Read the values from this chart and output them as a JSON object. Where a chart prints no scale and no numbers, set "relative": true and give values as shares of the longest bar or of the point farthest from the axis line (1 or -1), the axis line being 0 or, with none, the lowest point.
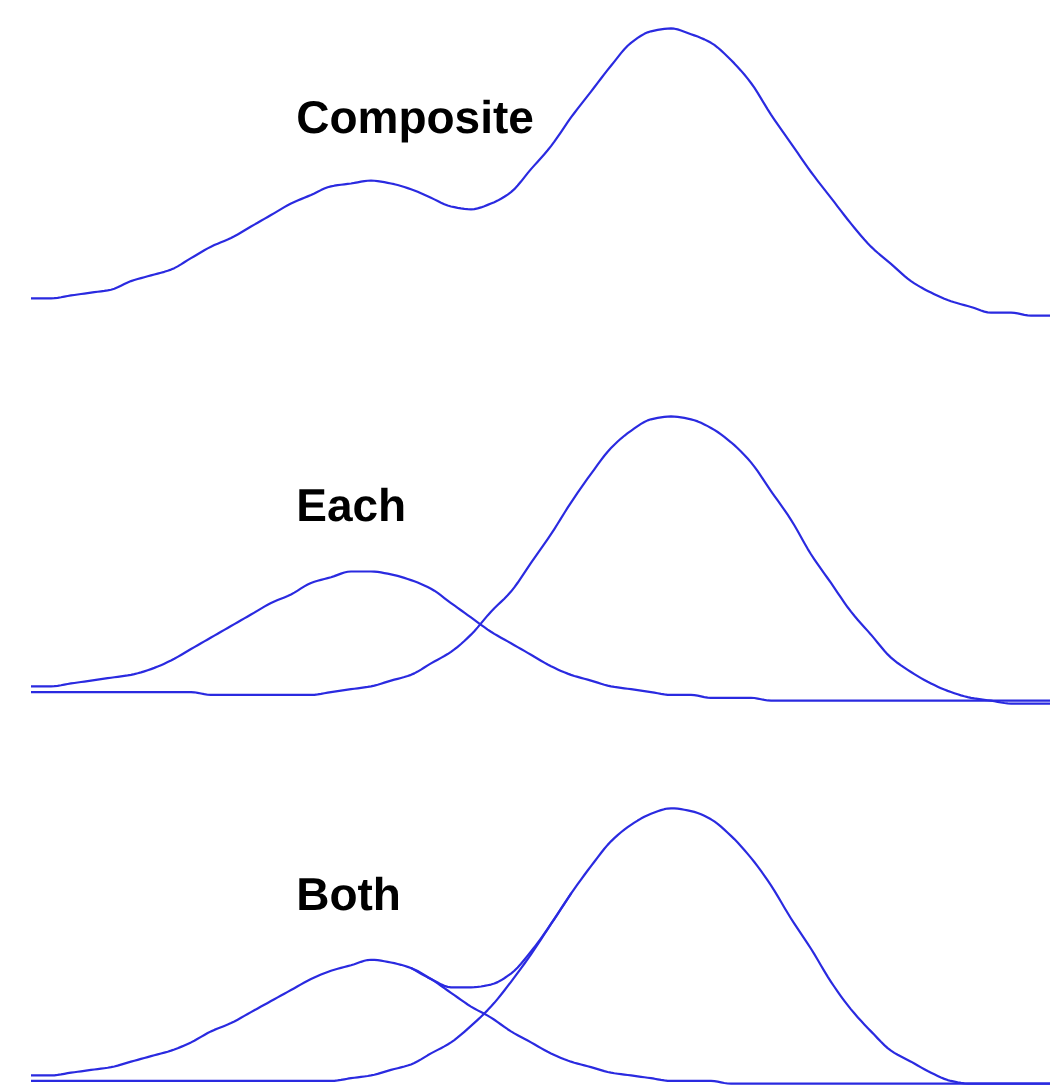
{
  "chart_data": [
    {
      "type": "line",
      "title": "Composite",
      "relative": true,
      "categories": [
        null,
        null,
        null,
        null,
        null,
        null,
        null,
        null,
        null,
        null,
        null,
        null,
        null,
        null,
        null,
        null,
        null,
        null,
        null,
        null,
        null,
        null,
        null,
        null,
        null,
        null,
        null,
        null,
        null,
        null,
        null,
        null,
        null,
        null,
        null,
        null,
        null,
        null,
        null,
        null,
        null,
        null,
        null,
        null,
        null,
        null,
        null,
        null,
        null,
        null,
        null,
        null
      ],
      "series": [
        {
          "color": "#2a2ae0",
          "values": [
            0.06,
            0.06,
            0.07,
            0.08,
            0.09,
            0.12,
            0.14,
            0.16,
            0.2,
            0.24,
            0.27,
            0.31,
            0.35,
            0.39,
            0.42,
            0.45,
            0.46,
            0.47,
            0.46,
            0.44,
            0.41,
            0.38,
            0.37,
            0.39,
            0.43,
            0.51,
            0.59,
            0.69,
            0.78,
            0.87,
            0.95,
            0.99,
            1.0,
            0.98,
            0.95,
            0.89,
            0.81,
            0.7,
            0.6,
            0.5,
            0.41,
            0.32,
            0.24,
            0.18,
            0.12,
            0.08,
            0.05,
            0.03,
            0.01,
            0.01,
            0,
            0
          ]
        }
      ]
    },
    {
      "type": "line",
      "title": "Each",
      "relative": true,
      "categories": [
        null,
        null,
        null,
        null,
        null,
        null,
        null,
        null,
        null,
        null,
        null,
        null,
        null,
        null,
        null,
        null,
        null,
        null,
        null,
        null,
        null,
        null,
        null,
        null,
        null,
        null,
        null,
        null,
        null,
        null,
        null,
        null,
        null,
        null,
        null,
        null,
        null,
        null,
        null,
        null,
        null,
        null,
        null,
        null,
        null,
        null,
        null,
        null,
        null,
        null,
        null,
        null
      ],
      "series": [
        {
          "color": "#2a2ae0",
          "values": [
            0.06,
            0.06,
            0.07,
            0.08,
            0.09,
            0.1,
            0.12,
            0.15,
            0.19,
            0.23,
            0.27,
            0.31,
            0.35,
            0.38,
            0.42,
            0.44,
            0.46,
            0.46,
            0.45,
            0.43,
            0.4,
            0.35,
            0.3,
            0.25,
            0.21,
            0.17,
            0.13,
            0.1,
            0.08,
            0.06,
            0.05,
            0.04,
            0.03,
            0.03,
            0.02,
            0.02,
            0.02,
            0.01,
            0.01,
            0.01,
            0.01,
            0.01,
            0.01,
            0.01,
            0.01,
            0.01,
            0.01,
            0.01,
            0.01,
            0.01,
            0.01,
            0.01
          ]
        },
        {
          "color": "#2a2ae0",
          "values": [
            0.04,
            0.04,
            0.04,
            0.04,
            0.04,
            0.04,
            0.04,
            0.04,
            0.04,
            0.03,
            0.03,
            0.03,
            0.03,
            0.03,
            0.03,
            0.04,
            0.05,
            0.06,
            0.08,
            0.1,
            0.14,
            0.18,
            0.24,
            0.32,
            0.39,
            0.49,
            0.59,
            0.7,
            0.8,
            0.89,
            0.95,
            0.99,
            1.0,
            0.99,
            0.96,
            0.91,
            0.84,
            0.74,
            0.64,
            0.52,
            0.42,
            0.32,
            0.24,
            0.16,
            0.11,
            0.07,
            0.04,
            0.02,
            0.01,
            0,
            0,
            0
          ]
        }
      ]
    },
    {
      "type": "line",
      "title": "Both",
      "relative": true,
      "categories": [
        null,
        null,
        null,
        null,
        null,
        null,
        null,
        null,
        null,
        null,
        null,
        null,
        null,
        null,
        null,
        null,
        null,
        null,
        null,
        null,
        null,
        null,
        null,
        null,
        null,
        null,
        null,
        null,
        null,
        null,
        null,
        null,
        null,
        null,
        null,
        null,
        null,
        null,
        null,
        null,
        null,
        null,
        null,
        null,
        null,
        null,
        null,
        null,
        null,
        null,
        null,
        null
      ],
      "series": [
        {
          "color": "#2a2ae0",
          "values": [
            0.03,
            0.03,
            0.04,
            0.05,
            0.06,
            0.08,
            0.1,
            0.12,
            0.15,
            0.19,
            0.22,
            0.26,
            0.3,
            0.34,
            0.38,
            0.41,
            0.43,
            0.45,
            0.44,
            0.42,
            0.38,
            0.33,
            0.28,
            0.24,
            0.19,
            0.15,
            0.11,
            0.08,
            0.06,
            0.04,
            0.03,
            0.02,
            0.01,
            0.01,
            0.01,
            0,
            0,
            0,
            0,
            0,
            0,
            0,
            0,
            0,
            0,
            0,
            0,
            0,
            0,
            0,
            0,
            0
          ]
        },
        {
          "color": "#2a2ae0",
          "values": [
            0.01,
            0.01,
            0.01,
            0.01,
            0.01,
            0.01,
            0.01,
            0.01,
            0.01,
            0.01,
            0.01,
            0.01,
            0.01,
            0.01,
            0.01,
            0.01,
            0.02,
            0.03,
            0.05,
            0.07,
            0.11,
            0.15,
            0.21,
            0.28,
            0.37,
            0.47,
            0.58,
            0.69,
            0.79,
            0.88,
            0.94,
            0.98,
            1.0,
            0.99,
            0.96,
            0.9,
            0.82,
            0.72,
            0.6,
            0.49,
            0.37,
            0.27,
            0.19,
            0.12,
            0.08,
            0.04,
            0.01,
            0,
            0,
            0,
            0,
            0
          ]
        },
        {
          "color": "#2a2ae0",
          "values": [
            null,
            null,
            null,
            null,
            null,
            null,
            null,
            null,
            null,
            null,
            null,
            null,
            null,
            null,
            null,
            null,
            null,
            null,
            null,
            0.42,
            0.38,
            0.35,
            0.35,
            0.36,
            0.4,
            0.48,
            0.58,
            0.69,
            null,
            null,
            null,
            null,
            null,
            null,
            null,
            null,
            null,
            null,
            null,
            null,
            null,
            null,
            null,
            null,
            null,
            null,
            null,
            null,
            null,
            null,
            null,
            null
          ]
        }
      ]
    }
  ]
}
